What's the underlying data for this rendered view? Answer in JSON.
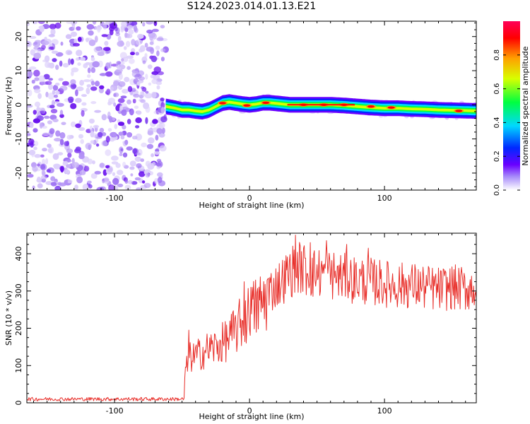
{
  "title": "S124.2023.014.01.13.E21",
  "chart_data": [
    {
      "type": "heatmap",
      "name": "spectrogram",
      "xlabel": "Height of straight line (km)",
      "ylabel": "Frequency (Hz)",
      "xlim": [
        -165,
        168
      ],
      "ylim": [
        -25,
        24.5
      ],
      "xticks": [
        -100,
        0,
        100
      ],
      "yticks": [
        -20,
        -10,
        0,
        10,
        20
      ],
      "noise_region_x": [
        -165,
        -62
      ],
      "signal_start_x": -62,
      "trace": {
        "x": [
          -62,
          -55,
          -50,
          -45,
          -40,
          -35,
          -30,
          -25,
          -20,
          -15,
          -10,
          -5,
          0,
          5,
          10,
          15,
          20,
          30,
          40,
          50,
          60,
          70,
          80,
          90,
          100,
          110,
          120,
          130,
          140,
          150,
          160,
          168
        ],
        "y": [
          -0.5,
          -1.0,
          -1.5,
          -1.5,
          -1.8,
          -2.0,
          -1.5,
          -0.5,
          0.5,
          0.8,
          0.5,
          0.2,
          0.0,
          0.2,
          0.6,
          0.6,
          0.4,
          0.0,
          0.0,
          0.0,
          0.0,
          -0.2,
          -0.5,
          -0.8,
          -1.0,
          -1.0,
          -1.2,
          -1.3,
          -1.5,
          -1.6,
          -1.7,
          -1.8
        ]
      },
      "hot_spots": [
        {
          "x": -20,
          "y": 0.5
        },
        {
          "x": -2,
          "y": -0.2
        },
        {
          "x": 12,
          "y": 0.6
        },
        {
          "x": 40,
          "y": 0.0
        },
        {
          "x": 55,
          "y": 0.0
        },
        {
          "x": 70,
          "y": 0.0
        },
        {
          "x": 90,
          "y": -0.5
        },
        {
          "x": 105,
          "y": -0.8
        },
        {
          "x": 155,
          "y": -1.8
        }
      ],
      "colorbar": {
        "label": "Normalized spectral amplitude",
        "range": [
          0,
          1
        ],
        "ticks": [
          "0.0",
          "0.2",
          "0.4",
          "0.6",
          "0.8"
        ],
        "colors": [
          "#ffffff",
          "#a78bfa",
          "#6a00ff",
          "#0028ff",
          "#00d8ff",
          "#00ff40",
          "#d8ff00",
          "#ffa000",
          "#ff0000",
          "#ff0058"
        ]
      }
    },
    {
      "type": "line",
      "name": "snr",
      "xlabel": "Height of straight line (km)",
      "ylabel": "SNR (10 * v/v)",
      "xlim": [
        -165,
        168
      ],
      "ylim": [
        0,
        455
      ],
      "xticks": [
        -100,
        0,
        100
      ],
      "yticks": [
        0,
        100,
        200,
        300,
        400
      ],
      "color": "#e8302b",
      "baseline": {
        "x_range": [
          -165,
          -48
        ],
        "mean": 10,
        "spread": 7
      },
      "envelope": {
        "x": [
          -48,
          -45,
          -40,
          -35,
          -30,
          -25,
          -20,
          -15,
          -10,
          -5,
          0,
          5,
          10,
          15,
          20,
          25,
          30,
          35,
          40,
          45,
          50,
          60,
          70,
          80,
          90,
          100,
          110,
          120,
          130,
          140,
          150,
          160,
          168
        ],
        "y": [
          70,
          120,
          125,
          135,
          145,
          150,
          160,
          175,
          195,
          220,
          240,
          255,
          270,
          300,
          315,
          330,
          350,
          365,
          360,
          345,
          350,
          345,
          335,
          330,
          325,
          320,
          315,
          315,
          310,
          305,
          310,
          305,
          310
        ]
      },
      "spikes": [
        {
          "x": -45,
          "y": 195
        },
        {
          "x": -4,
          "y": 325
        },
        {
          "x": 1,
          "y": 310
        },
        {
          "x": 34,
          "y": 450
        },
        {
          "x": 45,
          "y": 430
        },
        {
          "x": 57,
          "y": 435
        },
        {
          "x": 72,
          "y": 425
        },
        {
          "x": 88,
          "y": 415
        }
      ]
    }
  ]
}
